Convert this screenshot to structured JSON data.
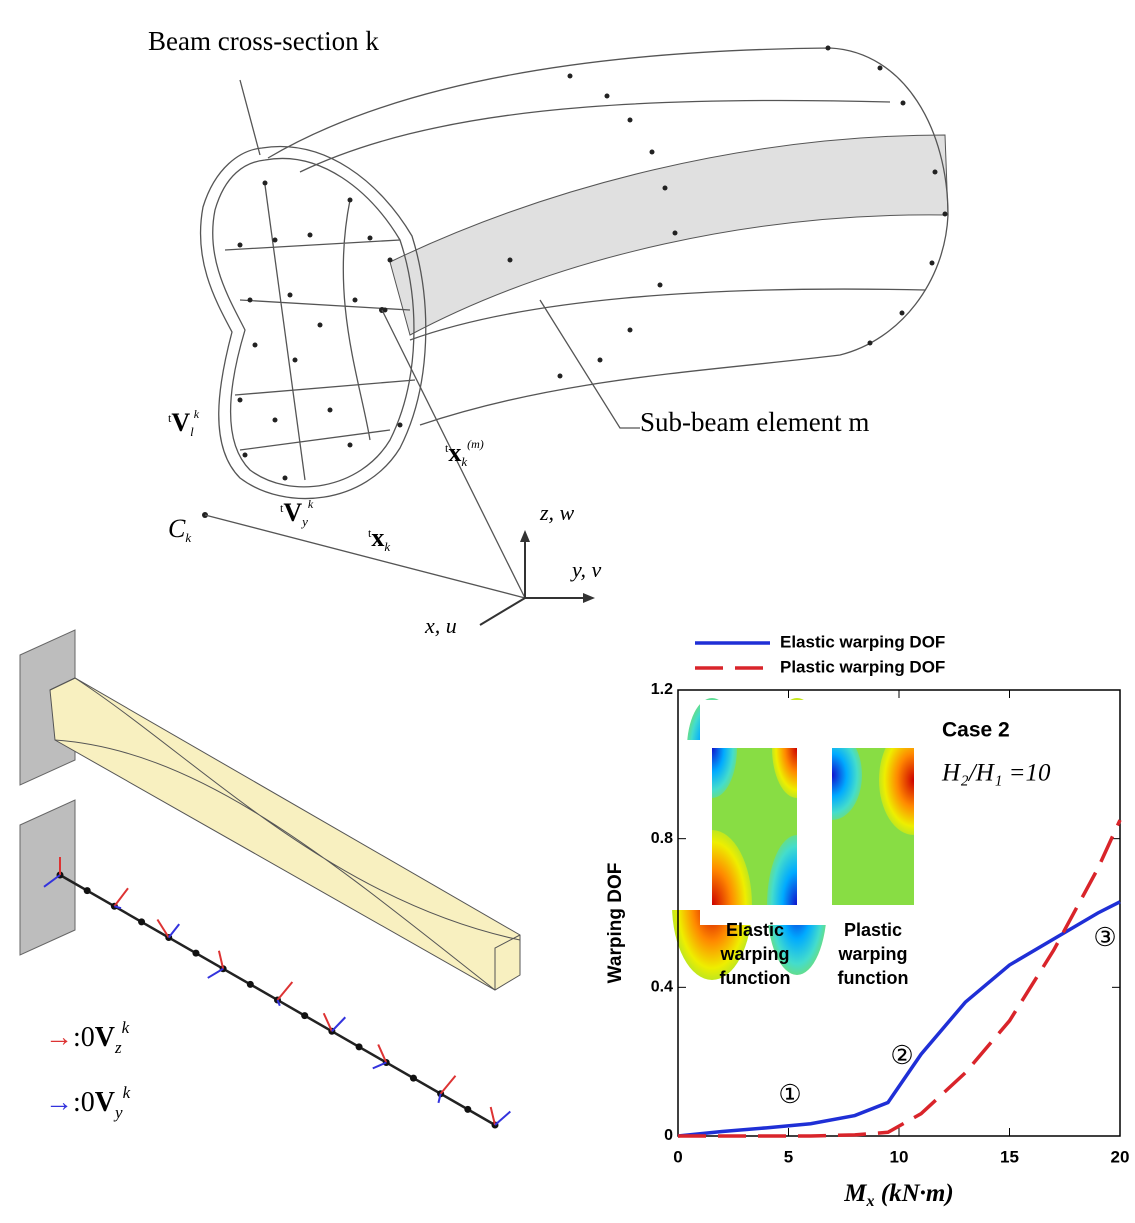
{
  "diagram": {
    "cross_section_label": "Beam cross-section k",
    "sub_beam_label": "Sub-beam element m",
    "symbols": [
      {
        "pre": "t",
        "base": "V",
        "sub": "l",
        "sup": "k"
      },
      {
        "pre": "t",
        "base": "V",
        "sub": "y",
        "sup": "k"
      },
      {
        "pre": "t",
        "base": "x",
        "sub": "k",
        "sup": ""
      },
      {
        "pre": "t",
        "base": "x",
        "sub": "k",
        "sup": "(m)"
      },
      {
        "pre": "",
        "base": "C",
        "sub": "k",
        "sup": ""
      }
    ],
    "axes": [
      "z, w",
      "y, v",
      "x, u"
    ],
    "vector_legend": [
      {
        "pre": ":0",
        "base": "V",
        "sub": "z",
        "sup": "k"
      },
      {
        "pre": ":0",
        "base": "V",
        "sub": "y",
        "sup": "k"
      }
    ]
  },
  "chart_data": {
    "type": "line",
    "x_label": {
      "base": "M",
      "sub": "x",
      "rest": " (kN·m)"
    },
    "y_label": "Warping DOF",
    "x": [
      0,
      2,
      4,
      6,
      8,
      9.5,
      11,
      13,
      15,
      17,
      19,
      20
    ],
    "series": [
      {
        "name": "Elastic warping DOF",
        "color": "#1f2fd6",
        "dash": "solid",
        "values": [
          0,
          0.012,
          0.022,
          0.033,
          0.055,
          0.09,
          0.22,
          0.36,
          0.46,
          0.53,
          0.6,
          0.63
        ]
      },
      {
        "name": "Plastic warping DOF",
        "color": "#d9242a",
        "dash": "dashed",
        "values": [
          0,
          0,
          0,
          0,
          0.003,
          0.01,
          0.06,
          0.17,
          0.31,
          0.5,
          0.72,
          0.85
        ]
      }
    ],
    "xlim": [
      0,
      20
    ],
    "xticks": [
      0,
      5,
      10,
      15,
      20
    ],
    "ylim": [
      0,
      1.2
    ],
    "yticks": [
      0,
      0.4,
      0.8,
      1.2
    ],
    "annotations": [
      "Case 2",
      "H₂/H₁ =10",
      "①",
      "②",
      "③"
    ],
    "insets": [
      [
        "Elastic",
        "warping",
        "function"
      ],
      [
        "Plastic",
        "warping",
        "function"
      ]
    ]
  }
}
